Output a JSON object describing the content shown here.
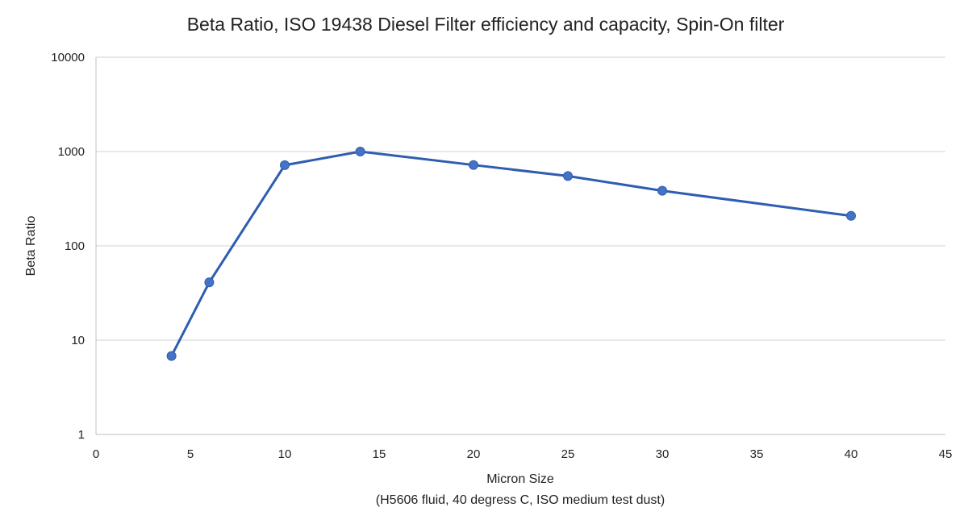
{
  "chart_data": {
    "type": "line",
    "title": "Beta Ratio, ISO 19438 Diesel Filter efficiency and capacity, Spin-On filter",
    "xlabel": "Micron Size",
    "xlabel_sub": "(H5606 fluid, 40 degress C, ISO medium test dust)",
    "ylabel": "Beta Ratio",
    "xlim": [
      0,
      45
    ],
    "ylim": [
      1,
      10000
    ],
    "yscale": "log",
    "grid": "horizontal",
    "xticks": [
      "0",
      "5",
      "10",
      "15",
      "20",
      "25",
      "30",
      "35",
      "40",
      "45"
    ],
    "yticks": [
      "1",
      "10",
      "100",
      "1000",
      "10000"
    ],
    "line_color": "#2f5db0",
    "marker_color": "#4472c4",
    "series": [
      {
        "x": [
          4,
          6,
          10,
          14,
          20,
          25,
          30,
          40
        ],
        "y": [
          6.8,
          41,
          717,
          1000,
          720,
          550,
          384,
          208
        ]
      }
    ]
  }
}
